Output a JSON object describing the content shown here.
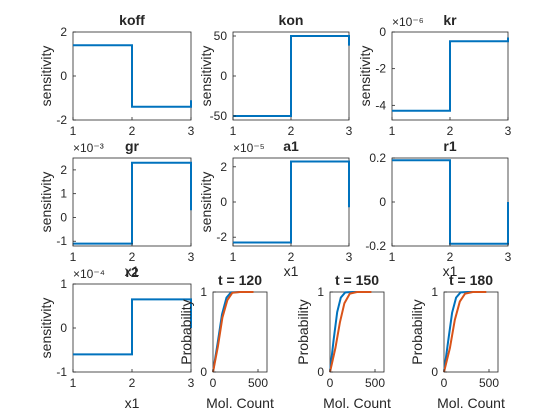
{
  "figure": {
    "background": "#ffffff"
  },
  "chart_data": [
    {
      "id": "koff",
      "type": "line",
      "title": "koff",
      "xlabel": "",
      "ylabel": "sensitivity",
      "xlim": [
        1,
        3
      ],
      "ylim": [
        -2,
        2
      ],
      "xticks": [
        "1",
        "2",
        "3"
      ],
      "yticks": [
        "-2",
        "0",
        "2"
      ],
      "exponent": "",
      "series": [
        {
          "color": "#0072BD",
          "points": [
            [
              1,
              1.4
            ],
            [
              2,
              1.4
            ],
            [
              2,
              -1.4
            ],
            [
              3,
              -1.4
            ],
            [
              3,
              -1.1
            ]
          ]
        }
      ]
    },
    {
      "id": "kon",
      "type": "line",
      "title": "kon",
      "xlabel": "",
      "ylabel": "sensitivity",
      "xlim": [
        1,
        3
      ],
      "ylim": [
        -55,
        55
      ],
      "xticks": [
        "1",
        "2",
        "3"
      ],
      "yticks": [
        "-50",
        "0",
        "50"
      ],
      "exponent": "",
      "series": [
        {
          "color": "#0072BD",
          "points": [
            [
              1,
              -50
            ],
            [
              2,
              -50
            ],
            [
              2,
              50
            ],
            [
              3,
              50
            ],
            [
              3,
              38
            ]
          ]
        }
      ]
    },
    {
      "id": "kr",
      "type": "line",
      "title": "kr",
      "xlabel": "",
      "ylabel": "sensitivity",
      "xlim": [
        1,
        3
      ],
      "ylim": [
        -4.8,
        0
      ],
      "xticks": [
        "1",
        "2",
        "3"
      ],
      "yticks": [
        "-4",
        "-2",
        "0"
      ],
      "exponent": "×10⁻⁶",
      "series": [
        {
          "color": "#0072BD",
          "points": [
            [
              1,
              -4.3
            ],
            [
              2,
              -4.3
            ],
            [
              2,
              -0.5
            ],
            [
              3,
              -0.5
            ],
            [
              3,
              -0.3
            ]
          ]
        }
      ]
    },
    {
      "id": "gr",
      "type": "line",
      "title": "gr",
      "xlabel": "x1",
      "ylabel": "sensitivity",
      "xlim": [
        1,
        3
      ],
      "ylim": [
        -1.2,
        2.5
      ],
      "xticks": [
        "1",
        "2",
        "3"
      ],
      "yticks": [
        "-1",
        "0",
        "1",
        "2"
      ],
      "exponent": "×10⁻³",
      "series": [
        {
          "color": "#0072BD",
          "points": [
            [
              1,
              -1.1
            ],
            [
              2,
              -1.1
            ],
            [
              2,
              2.3
            ],
            [
              3,
              2.3
            ],
            [
              3,
              0.3
            ]
          ]
        }
      ]
    },
    {
      "id": "a1",
      "type": "line",
      "title": "a1",
      "xlabel": "x1",
      "ylabel": "sensitivity",
      "xlim": [
        1,
        3
      ],
      "ylim": [
        -2.5,
        2.5
      ],
      "xticks": [
        "1",
        "2",
        "3"
      ],
      "yticks": [
        "-2",
        "0",
        "2"
      ],
      "exponent": "×10⁻⁵",
      "series": [
        {
          "color": "#0072BD",
          "points": [
            [
              1,
              -2.3
            ],
            [
              2,
              -2.3
            ],
            [
              2,
              2.3
            ],
            [
              3,
              2.3
            ],
            [
              3,
              -0.3
            ]
          ]
        }
      ]
    },
    {
      "id": "r1",
      "type": "line",
      "title": "r1",
      "xlabel": "x1",
      "ylabel": "",
      "xlim": [
        1,
        3
      ],
      "ylim": [
        -0.2,
        0.2
      ],
      "xticks": [
        "1",
        "2",
        "3"
      ],
      "yticks": [
        "-0.2",
        "0",
        "0.2"
      ],
      "exponent": "",
      "series": [
        {
          "color": "#0072BD",
          "points": [
            [
              1,
              0.19
            ],
            [
              2,
              0.19
            ],
            [
              2,
              -0.19
            ],
            [
              3,
              -0.19
            ],
            [
              3,
              0.0
            ]
          ]
        }
      ]
    },
    {
      "id": "r2",
      "type": "line",
      "title": "r2",
      "xlabel": "x1",
      "ylabel": "sensitivity",
      "xlim": [
        1,
        3
      ],
      "ylim": [
        -1,
        1
      ],
      "xticks": [
        "1",
        "2",
        "3"
      ],
      "yticks": [
        "-1",
        "0",
        "1"
      ],
      "exponent": "×10⁻⁴",
      "series": [
        {
          "color": "#0072BD",
          "points": [
            [
              1,
              -0.6
            ],
            [
              2,
              -0.6
            ],
            [
              2,
              0.65
            ],
            [
              3,
              0.65
            ],
            [
              3,
              0.0
            ]
          ]
        }
      ]
    },
    {
      "id": "t120",
      "type": "line",
      "title": "t = 120",
      "xlabel": "Mol. Count",
      "ylabel": "Probability",
      "xlim": [
        0,
        600
      ],
      "ylim": [
        0,
        1
      ],
      "xticks": [
        "0",
        "500"
      ],
      "yticks": [
        "0",
        "1"
      ],
      "exponent": "",
      "series": [
        {
          "color": "#0072BD",
          "points": [
            [
              0,
              0
            ],
            [
              50,
              0.35
            ],
            [
              100,
              0.72
            ],
            [
              150,
              0.93
            ],
            [
              200,
              0.995
            ],
            [
              300,
              1
            ],
            [
              420,
              1
            ]
          ]
        },
        {
          "color": "#D95319",
          "points": [
            [
              0,
              0
            ],
            [
              55,
              0.32
            ],
            [
              105,
              0.68
            ],
            [
              160,
              0.9
            ],
            [
              215,
              0.99
            ],
            [
              300,
              1
            ],
            [
              450,
              1
            ]
          ]
        }
      ]
    },
    {
      "id": "t150",
      "type": "line",
      "title": "t = 150",
      "xlabel": "Mol. Count",
      "ylabel": "Probability",
      "xlim": [
        0,
        600
      ],
      "ylim": [
        0,
        1
      ],
      "xticks": [
        "0",
        "500"
      ],
      "yticks": [
        "0",
        "1"
      ],
      "exponent": "",
      "series": [
        {
          "color": "#0072BD",
          "points": [
            [
              0,
              0
            ],
            [
              40,
              0.4
            ],
            [
              80,
              0.75
            ],
            [
              120,
              0.93
            ],
            [
              170,
              0.995
            ],
            [
              250,
              1
            ],
            [
              380,
              1
            ]
          ]
        },
        {
          "color": "#D95319",
          "points": [
            [
              0,
              0
            ],
            [
              60,
              0.3
            ],
            [
              110,
              0.62
            ],
            [
              160,
              0.86
            ],
            [
              220,
              0.98
            ],
            [
              300,
              1
            ],
            [
              460,
              1
            ]
          ]
        }
      ]
    },
    {
      "id": "t180",
      "type": "line",
      "title": "t = 180",
      "xlabel": "Mol. Count",
      "ylabel": "Probability",
      "xlim": [
        0,
        600
      ],
      "ylim": [
        0,
        1
      ],
      "xticks": [
        "0",
        "500"
      ],
      "yticks": [
        "0",
        "1"
      ],
      "exponent": "",
      "series": [
        {
          "color": "#0072BD",
          "points": [
            [
              0,
              0
            ],
            [
              45,
              0.38
            ],
            [
              90,
              0.74
            ],
            [
              135,
              0.93
            ],
            [
              185,
              0.995
            ],
            [
              260,
              1
            ],
            [
              400,
              1
            ]
          ]
        },
        {
          "color": "#D95319",
          "points": [
            [
              0,
              0
            ],
            [
              65,
              0.3
            ],
            [
              120,
              0.65
            ],
            [
              175,
              0.88
            ],
            [
              235,
              0.98
            ],
            [
              320,
              1
            ],
            [
              470,
              1
            ]
          ]
        }
      ]
    }
  ]
}
